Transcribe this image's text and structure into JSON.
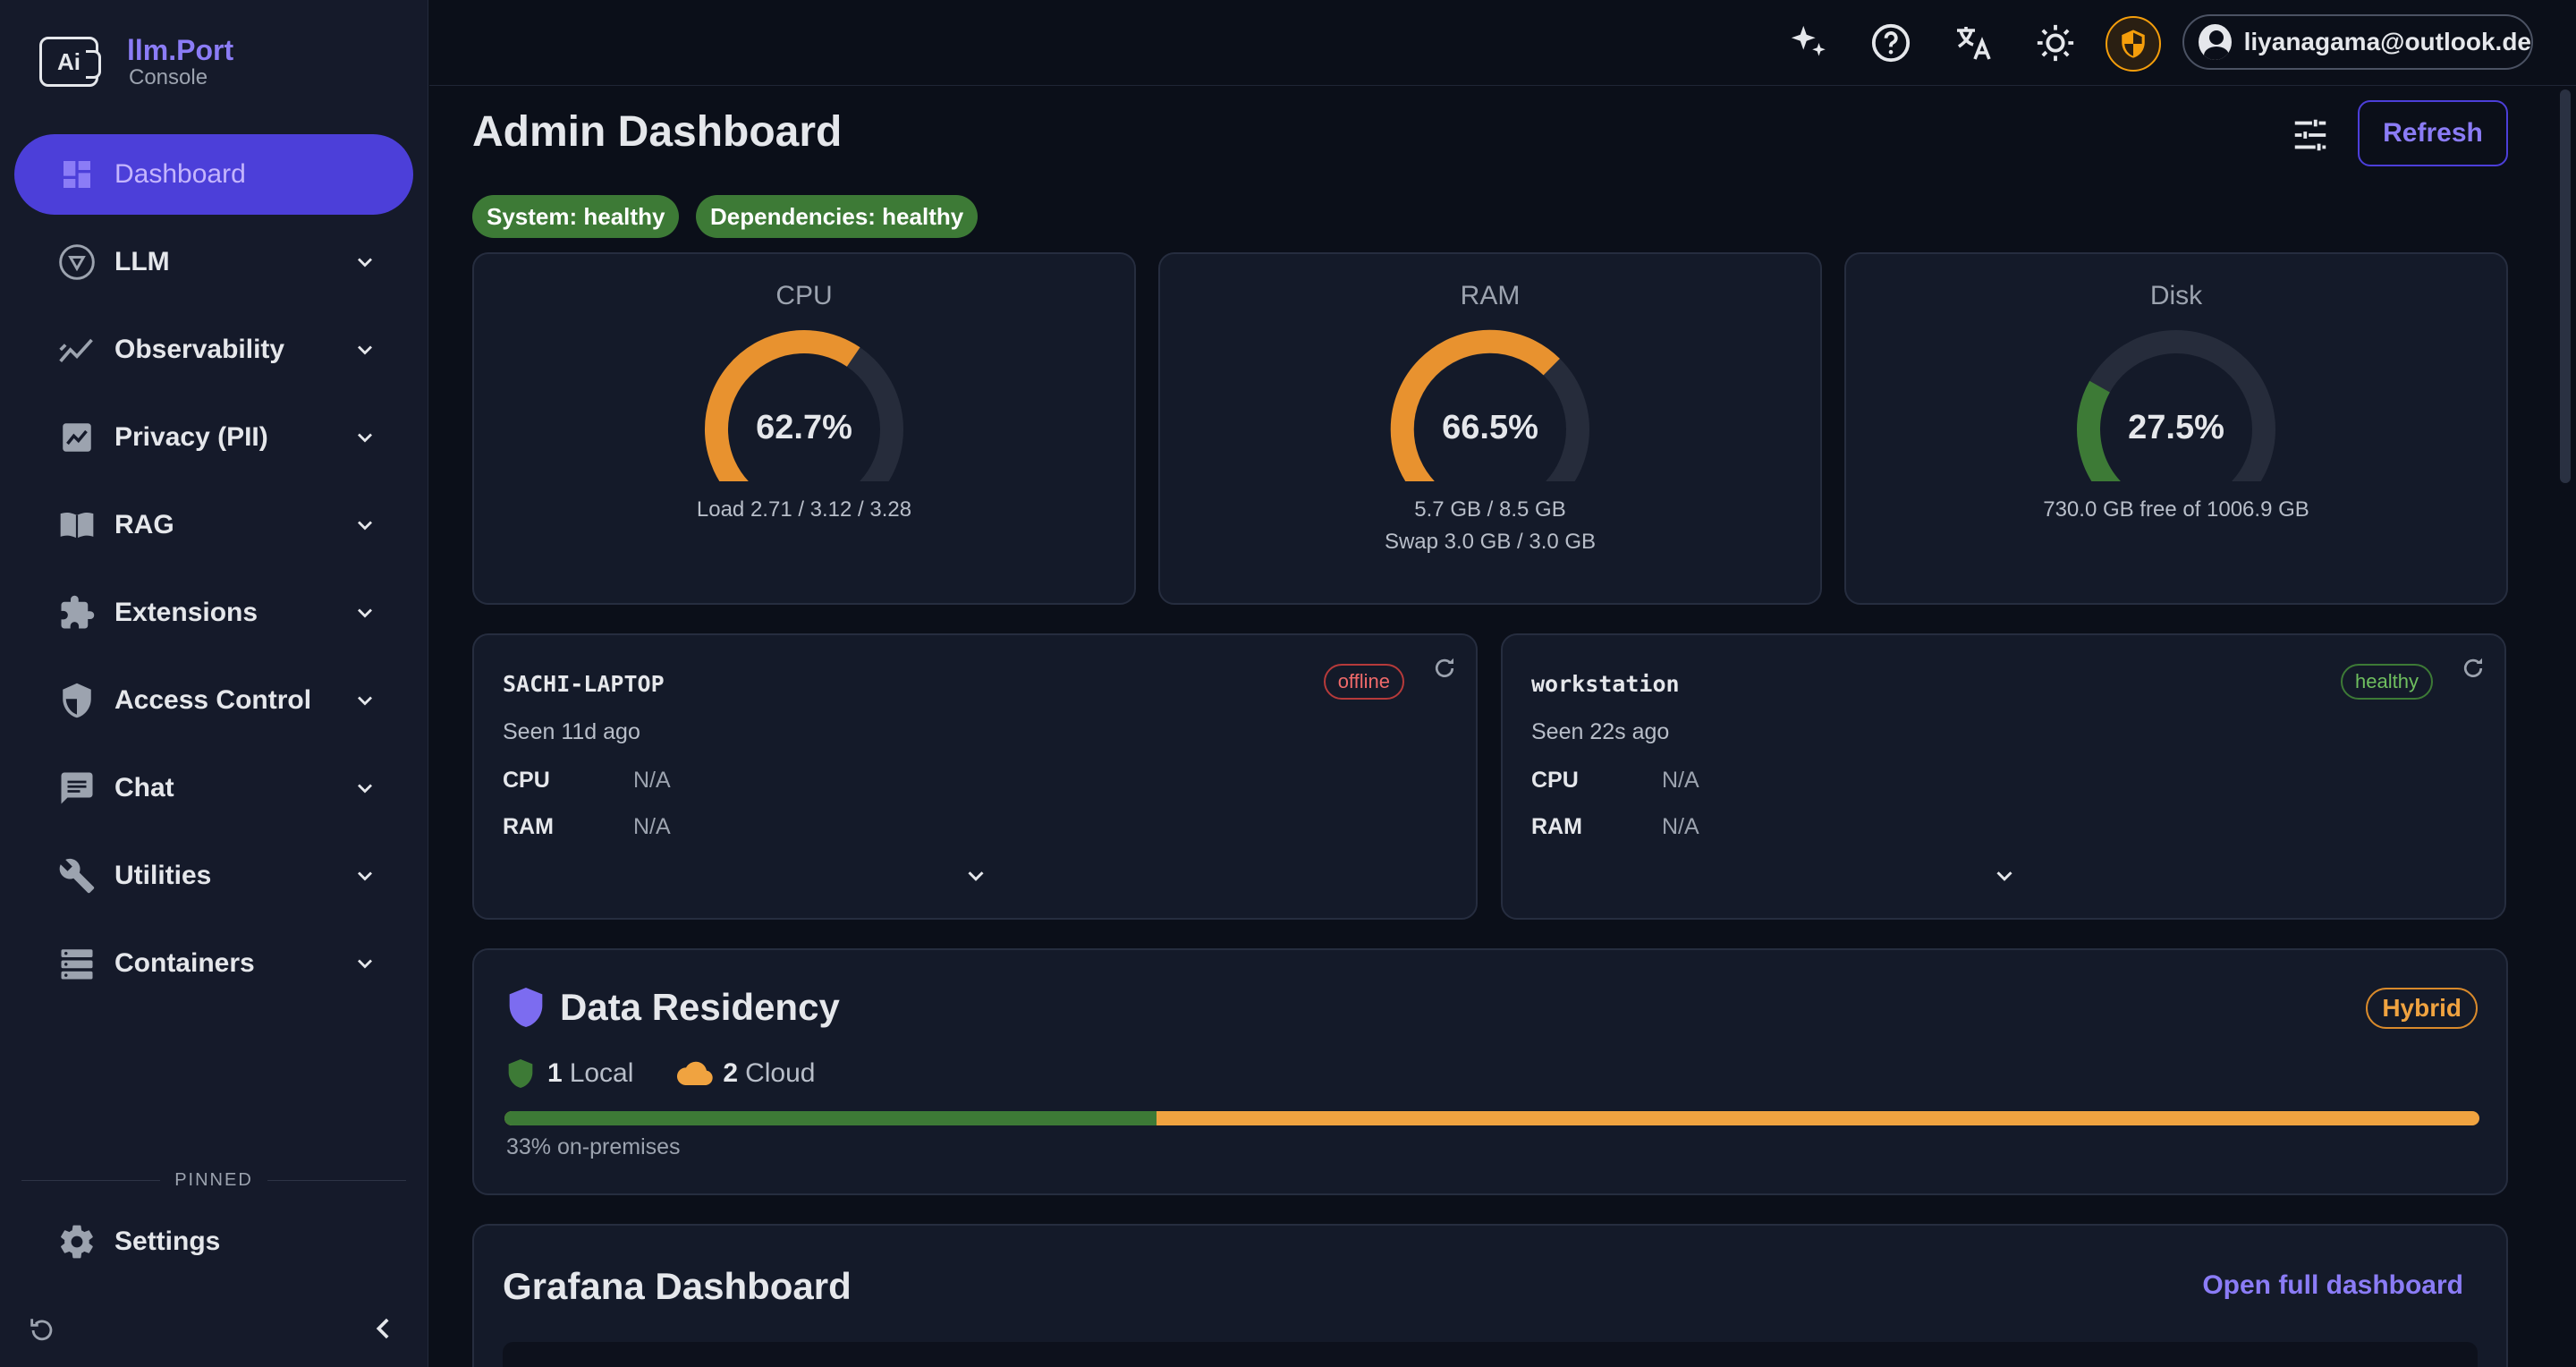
{
  "brand": {
    "name": "llm.Port",
    "subtitle": "Console",
    "logo_text": "Ai"
  },
  "sidebar": {
    "items": [
      {
        "label": "Dashboard",
        "icon": "dashboard-icon",
        "active": true
      },
      {
        "label": "LLM",
        "icon": "llm-icon"
      },
      {
        "label": "Observability",
        "icon": "observability-icon"
      },
      {
        "label": "Privacy (PII)",
        "icon": "privacy-icon"
      },
      {
        "label": "RAG",
        "icon": "book-icon"
      },
      {
        "label": "Extensions",
        "icon": "puzzle-icon"
      },
      {
        "label": "Access Control",
        "icon": "shield-icon"
      },
      {
        "label": "Chat",
        "icon": "chat-icon"
      },
      {
        "label": "Utilities",
        "icon": "wrench-icon"
      },
      {
        "label": "Containers",
        "icon": "containers-icon"
      }
    ],
    "pinned_label": "PINNED",
    "settings_label": "Settings"
  },
  "topbar": {
    "user_email": "liyanagama@outlook.de",
    "icons": [
      "sparkle-icon",
      "help-icon",
      "translate-icon",
      "theme-icon",
      "shield-icon",
      "user-icon"
    ]
  },
  "page": {
    "title": "Admin Dashboard",
    "refresh_label": "Refresh",
    "system_status": "System: healthy",
    "dependencies_status": "Dependencies: healthy"
  },
  "gauges": [
    {
      "title": "CPU",
      "value": 62.7,
      "value_label": "62.7%",
      "color": "#e8922f",
      "lines": [
        "Load 2.71 / 3.12 / 3.28"
      ]
    },
    {
      "title": "RAM",
      "value": 66.5,
      "value_label": "66.5%",
      "color": "#e8922f",
      "lines": [
        "5.7 GB / 8.5 GB",
        "Swap 3.0 GB / 3.0 GB"
      ]
    },
    {
      "title": "Disk",
      "value": 27.5,
      "value_label": "27.5%",
      "color": "#3d7a36",
      "lines": [
        "730.0 GB free of 1006.9 GB"
      ]
    }
  ],
  "hosts": [
    {
      "name": "SACHI-LAPTOP",
      "status": "offline",
      "seen": "Seen 11d ago",
      "cpu_label": "CPU",
      "cpu": "N/A",
      "ram_label": "RAM",
      "ram": "N/A"
    },
    {
      "name": "workstation",
      "status": "healthy",
      "seen": "Seen 22s ago",
      "cpu_label": "CPU",
      "cpu": "N/A",
      "ram_label": "RAM",
      "ram": "N/A"
    }
  ],
  "residency": {
    "title": "Data Residency",
    "mode": "Hybrid",
    "local_count": "1",
    "local_label": "Local",
    "cloud_count": "2",
    "cloud_label": "Cloud",
    "on_prem_fraction": 0.33,
    "note": "33% on-premises",
    "colors": {
      "local": "#3d7a36",
      "cloud": "#f0a340"
    }
  },
  "grafana": {
    "title": "Grafana Dashboard",
    "link_label": "Open full dashboard"
  }
}
